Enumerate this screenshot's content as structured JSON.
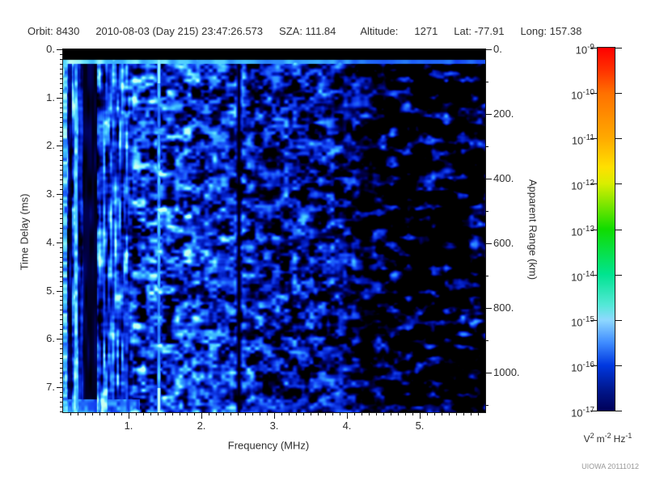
{
  "header": {
    "items": [
      "Orbit: 8430",
      "2010-08-03 (Day 215) 23:47:26.573",
      "SZA: 111.84",
      "Altitude:",
      "1271",
      "Lat: -77.91",
      "Long: 157.38"
    ]
  },
  "footer": {
    "credit": "UIOWA 20111012"
  },
  "chart_data": {
    "type": "heatmap",
    "subtype": "radar-sounder-ionogram-spectrogram",
    "x_axis": {
      "label": "Frequency (MHz)",
      "range": [
        0.1,
        5.9
      ],
      "major_ticks": [
        1,
        2,
        3,
        4,
        5
      ],
      "tick_labels": [
        "1.",
        "2.",
        "3.",
        "4.",
        "5."
      ],
      "minor_step": 0.1
    },
    "y_axis": {
      "label": "Time Delay (ms)",
      "direction": "down",
      "range": [
        0,
        7.52
      ],
      "major_ticks": [
        0,
        1,
        2,
        3,
        4,
        5,
        6,
        7
      ],
      "tick_labels": [
        "0.",
        "1.",
        "2.",
        "3.",
        "4.",
        "5.",
        "6.",
        "7."
      ],
      "minor_step": 0.1
    },
    "y2_axis": {
      "label": "Apparent Range (km)",
      "range": [
        0,
        1122
      ],
      "major_ticks": [
        0,
        200,
        400,
        600,
        800,
        1000
      ],
      "tick_labels": [
        "0.",
        "200.",
        "400.",
        "600.",
        "800.",
        "1000."
      ],
      "minor_step": 100
    },
    "colorbar": {
      "scale": "log",
      "decade_exponents": [
        -9,
        -10,
        -11,
        -12,
        -13,
        -14,
        -15,
        -16,
        -17
      ],
      "tick_labels": [
        {
          "base": "10",
          "exp": "-9"
        },
        {
          "base": "10",
          "exp": "-10"
        },
        {
          "base": "10",
          "exp": "-11"
        },
        {
          "base": "10",
          "exp": "-12"
        },
        {
          "base": "10",
          "exp": "-13"
        },
        {
          "base": "10",
          "exp": "-14"
        },
        {
          "base": "10",
          "exp": "-15"
        },
        {
          "base": "10",
          "exp": "-16"
        },
        {
          "base": "10",
          "exp": "-17"
        }
      ],
      "unit_parts": [
        {
          "text": "V",
          "sup": "2"
        },
        {
          "text": "m",
          "sup": "-2"
        },
        {
          "text": "Hz",
          "sup": "-1"
        }
      ],
      "gradient_stops": [
        {
          "p": 0.0,
          "c": "#ff0000"
        },
        {
          "p": 0.06,
          "c": "#ff3000"
        },
        {
          "p": 0.125,
          "c": "#ff7000"
        },
        {
          "p": 0.25,
          "c": "#ffaa00"
        },
        {
          "p": 0.33,
          "c": "#ffe000"
        },
        {
          "p": 0.375,
          "c": "#d8ee00"
        },
        {
          "p": 0.5,
          "c": "#10dc00"
        },
        {
          "p": 0.625,
          "c": "#00e490"
        },
        {
          "p": 0.71,
          "c": "#55e8d8"
        },
        {
          "p": 0.75,
          "c": "#8fd8ff"
        },
        {
          "p": 0.8125,
          "c": "#3f8cff"
        },
        {
          "p": 0.875,
          "c": "#0038e0"
        },
        {
          "p": 0.94,
          "c": "#001890"
        },
        {
          "p": 1.0,
          "c": "#000058"
        }
      ]
    },
    "features": [
      {
        "name": "transmit-blanking-band",
        "time_ms": [
          0,
          0.21
        ],
        "appearance": "solid black band across full frequency range"
      },
      {
        "name": "surface-echo-line",
        "time_ms": [
          0.22,
          0.29
        ],
        "appearance": "bright cyan horizontal line, dimming toward high frequency"
      },
      {
        "name": "bright-edge-column",
        "freq_mhz": [
          0.1,
          0.15
        ],
        "appearance": "bright cyan column at left edge"
      },
      {
        "name": "dark-column",
        "freq_mhz": [
          0.17,
          0.22
        ],
        "appearance": "dark gap"
      },
      {
        "name": "bright-column",
        "freq_mhz": 0.27,
        "appearance": "narrow bright cyan vertical line"
      },
      {
        "name": "dark-band",
        "freq_mhz": [
          0.38,
          0.56
        ],
        "appearance": "near-black vertical band"
      },
      {
        "name": "vertical-striping",
        "freq_mhz": [
          0.1,
          1.0
        ],
        "appearance": "column-correlated blue striping"
      },
      {
        "name": "interference-line",
        "freq_mhz": 1.41,
        "appearance": "bright cyan vertical line, brightest segment near bottom"
      },
      {
        "name": "dark-line",
        "freq_mhz": 2.5,
        "appearance": "black vertical stripe"
      },
      {
        "name": "noise-floor-fadeout",
        "freq_mhz": [
          3.9,
          5.9
        ],
        "appearance": "sparse horizontally elongated dark-blue blobs on black"
      }
    ],
    "render": {
      "seed": 7,
      "colormap": [
        {
          "p": 0.0,
          "c": "#000000"
        },
        {
          "p": 0.16,
          "c": "#000050"
        },
        {
          "p": 0.32,
          "c": "#0018b8"
        },
        {
          "p": 0.5,
          "c": "#1545f5"
        },
        {
          "p": 0.66,
          "c": "#2b8aff"
        },
        {
          "p": 0.8,
          "c": "#45c8ff"
        },
        {
          "p": 0.9,
          "c": "#7df0ff"
        },
        {
          "p": 1.0,
          "c": "#c8fff0"
        }
      ]
    }
  }
}
